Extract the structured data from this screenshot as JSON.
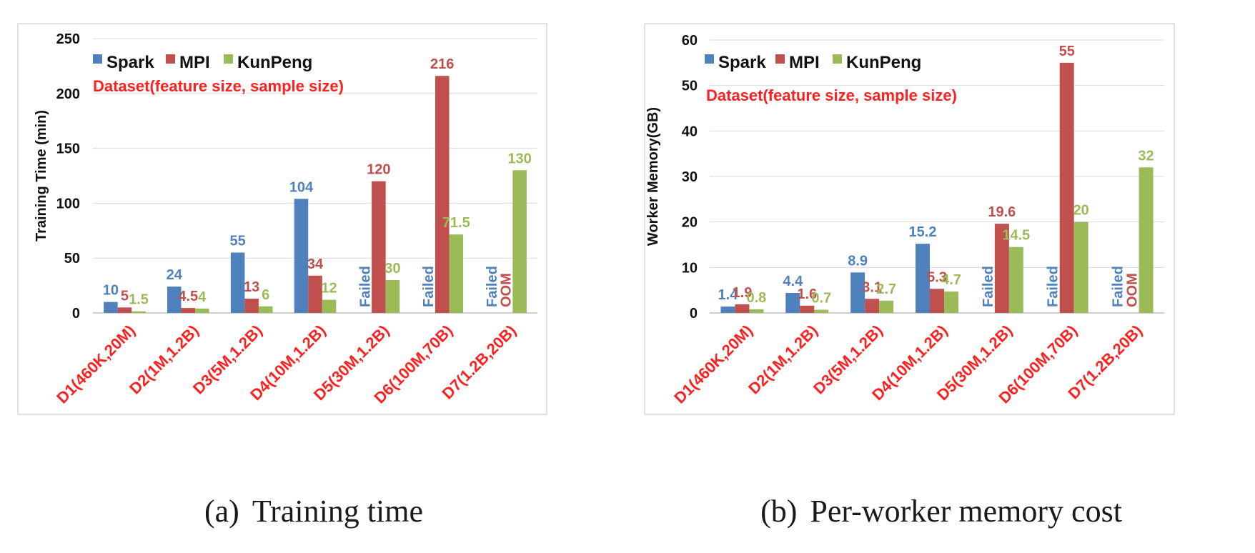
{
  "chart_data": [
    {
      "type": "bar",
      "ylabel": "Training Time (min)",
      "ylim": [
        0,
        250
      ],
      "yticks": [
        0,
        50,
        100,
        150,
        200,
        250
      ],
      "grid": true,
      "legend_position": "top-left",
      "note": "Dataset(feature size, sample size)",
      "categories": [
        "D1(460K,20M)",
        "D2(1M,1.2B)",
        "D3(5M,1.2B)",
        "D4(10M,1.2B)",
        "D5(30M,1.2B)",
        "D6(100M,70B)",
        "D7(1.2B,20B)"
      ],
      "series": [
        {
          "name": "Spark",
          "color": "#4f81bd",
          "values": [
            10,
            24,
            55,
            104,
            null,
            null,
            null
          ],
          "labels": [
            "10",
            "24",
            "55",
            "104",
            "",
            "",
            ""
          ]
        },
        {
          "name": "MPI",
          "color": "#c0504d",
          "values": [
            5,
            4.5,
            13,
            34,
            120,
            216,
            null
          ],
          "labels": [
            "5",
            "4.5",
            "13",
            "34",
            "120",
            "216",
            ""
          ]
        },
        {
          "name": "KunPeng",
          "color": "#9bbb59",
          "values": [
            1.5,
            4,
            6,
            12,
            30,
            71.5,
            130
          ],
          "labels": [
            "1.5",
            "4",
            "6",
            "12",
            "30",
            "71.5",
            "130"
          ]
        }
      ],
      "annotations": [
        {
          "category": 4,
          "series": 0,
          "text": "Failed",
          "color": "#4f81bd"
        },
        {
          "category": 5,
          "series": 0,
          "text": "Failed",
          "color": "#4f81bd"
        },
        {
          "category": 6,
          "series": 0,
          "text": "Failed",
          "color": "#4f81bd"
        },
        {
          "category": 6,
          "series": 1,
          "text": "OOM",
          "color": "#c0504d"
        }
      ]
    },
    {
      "type": "bar",
      "ylabel": "Worker Memory(GB)",
      "ylim": [
        0,
        60
      ],
      "yticks": [
        0,
        10,
        20,
        30,
        40,
        50,
        60
      ],
      "grid": true,
      "legend_position": "top-left",
      "note": "Dataset(feature size, sample size)",
      "categories": [
        "D1(460K,20M)",
        "D2(1M,1.2B)",
        "D3(5M,1.2B)",
        "D4(10M,1.2B)",
        "D5(30M,1.2B)",
        "D6(100M,70B)",
        "D7(1.2B,20B)"
      ],
      "series": [
        {
          "name": "Spark",
          "color": "#4f81bd",
          "values": [
            1.4,
            4.4,
            8.9,
            15.2,
            null,
            null,
            null
          ],
          "labels": [
            "1.4",
            "4.4",
            "8.9",
            "15.2",
            "",
            "",
            ""
          ]
        },
        {
          "name": "MPI",
          "color": "#c0504d",
          "values": [
            1.9,
            1.6,
            3.1,
            5.3,
            19.6,
            55,
            null
          ],
          "labels": [
            "1.9",
            "1.6",
            "3.1",
            "5.3",
            "19.6",
            "55",
            ""
          ]
        },
        {
          "name": "KunPeng",
          "color": "#9bbb59",
          "values": [
            0.8,
            0.7,
            2.7,
            4.7,
            14.5,
            20,
            32
          ],
          "labels": [
            "0.8",
            "0.7",
            "2.7",
            "4.7",
            "14.5",
            "20",
            "32"
          ]
        }
      ],
      "annotations": [
        {
          "category": 4,
          "series": 0,
          "text": "Failed",
          "color": "#4f81bd"
        },
        {
          "category": 5,
          "series": 0,
          "text": "Failed",
          "color": "#4f81bd"
        },
        {
          "category": 6,
          "series": 0,
          "text": "Failed",
          "color": "#4f81bd"
        },
        {
          "category": 6,
          "series": 1,
          "text": "OOM",
          "color": "#c0504d"
        }
      ]
    }
  ],
  "captions": [
    {
      "label": "(a)",
      "text": "Training time"
    },
    {
      "label": "(b)",
      "text": "Per-worker memory cost"
    }
  ]
}
